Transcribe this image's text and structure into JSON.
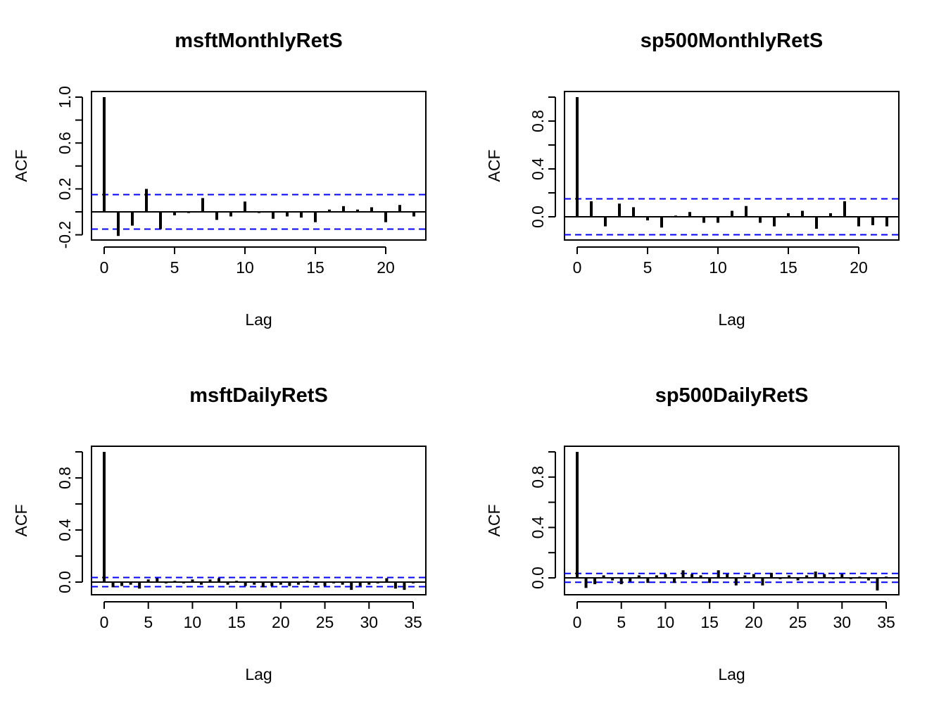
{
  "chart_data": [
    {
      "type": "bar",
      "title": "msftMonthlyRetS",
      "xlabel": "Lag",
      "ylabel": "ACF",
      "xlim": [
        0,
        22
      ],
      "ylim": [
        -0.2,
        1.0
      ],
      "xticks": [
        "0",
        "5",
        "10",
        "15",
        "20"
      ],
      "yticks": [
        "-0.2",
        "0.2",
        "0.6",
        "1.0"
      ],
      "ci": 0.15,
      "ci_color": "#0000ff",
      "grid": false,
      "lags": [
        0,
        1,
        2,
        3,
        4,
        5,
        6,
        7,
        8,
        9,
        10,
        11,
        12,
        13,
        14,
        15,
        16,
        17,
        18,
        19,
        20,
        21,
        22
      ],
      "values": [
        1.0,
        -0.21,
        -0.12,
        0.2,
        -0.15,
        -0.03,
        -0.01,
        0.12,
        -0.07,
        -0.04,
        0.09,
        -0.01,
        -0.06,
        -0.04,
        -0.05,
        -0.09,
        0.02,
        0.05,
        0.02,
        0.04,
        -0.09,
        0.06,
        -0.04
      ]
    },
    {
      "type": "bar",
      "title": "sp500MonthlyRetS",
      "xlabel": "Lag",
      "ylabel": "ACF",
      "xlim": [
        0,
        22
      ],
      "ylim": [
        -0.15,
        1.0
      ],
      "xticks": [
        "0",
        "5",
        "10",
        "15",
        "20"
      ],
      "yticks": [
        "0.0",
        "0.4",
        "0.8"
      ],
      "ci": 0.15,
      "ci_color": "#0000ff",
      "grid": false,
      "lags": [
        0,
        1,
        2,
        3,
        4,
        5,
        6,
        7,
        8,
        9,
        10,
        11,
        12,
        13,
        14,
        15,
        16,
        17,
        18,
        19,
        20,
        21,
        22
      ],
      "values": [
        1.0,
        0.13,
        -0.08,
        0.11,
        0.08,
        -0.03,
        -0.09,
        0.01,
        0.04,
        -0.05,
        -0.05,
        0.05,
        0.09,
        -0.05,
        -0.08,
        0.03,
        0.05,
        -0.1,
        0.03,
        0.13,
        -0.08,
        -0.07,
        -0.08
      ]
    },
    {
      "type": "bar",
      "title": "msftDailyRetS",
      "xlabel": "Lag",
      "ylabel": "ACF",
      "xlim": [
        0,
        35
      ],
      "ylim": [
        -0.1,
        1.0
      ],
      "xticks": [
        "0",
        "5",
        "10",
        "15",
        "20",
        "25",
        "30",
        "35"
      ],
      "yticks": [
        "0.0",
        "0.4",
        "0.8"
      ],
      "ci": 0.035,
      "ci_color": "#0000ff",
      "grid": false,
      "lags": [
        0,
        1,
        2,
        3,
        4,
        5,
        6,
        7,
        8,
        9,
        10,
        11,
        12,
        13,
        14,
        15,
        16,
        17,
        18,
        19,
        20,
        21,
        22,
        23,
        24,
        25,
        26,
        27,
        28,
        29,
        30,
        31,
        32,
        33,
        34,
        35
      ],
      "values": [
        1.0,
        -0.04,
        -0.03,
        -0.02,
        -0.05,
        0.02,
        0.03,
        -0.01,
        0.01,
        -0.01,
        0.02,
        -0.02,
        0.02,
        0.03,
        -0.02,
        0.01,
        -0.03,
        -0.02,
        -0.04,
        -0.03,
        -0.02,
        -0.03,
        -0.02,
        0.01,
        -0.02,
        -0.03,
        -0.01,
        -0.02,
        -0.06,
        -0.03,
        -0.02,
        -0.01,
        0.03,
        -0.05,
        -0.06,
        -0.01
      ]
    },
    {
      "type": "bar",
      "title": "sp500DailyRetS",
      "xlabel": "Lag",
      "ylabel": "ACF",
      "xlim": [
        0,
        35
      ],
      "ylim": [
        -0.1,
        1.0
      ],
      "xticks": [
        "0",
        "5",
        "10",
        "15",
        "20",
        "25",
        "30",
        "35"
      ],
      "yticks": [
        "0.0",
        "0.4",
        "0.8"
      ],
      "ci": 0.035,
      "ci_color": "#0000ff",
      "grid": false,
      "lags": [
        0,
        1,
        2,
        3,
        4,
        5,
        6,
        7,
        8,
        9,
        10,
        11,
        12,
        13,
        14,
        15,
        16,
        17,
        18,
        19,
        20,
        21,
        22,
        23,
        24,
        25,
        26,
        27,
        28,
        29,
        30,
        31,
        32,
        33,
        34,
        35
      ],
      "values": [
        1.0,
        -0.08,
        -0.05,
        0.02,
        -0.02,
        -0.05,
        -0.03,
        0.02,
        -0.04,
        0.02,
        0.03,
        -0.04,
        0.06,
        0.03,
        0.02,
        -0.04,
        0.06,
        0.03,
        -0.06,
        0.02,
        0.03,
        -0.06,
        0.04,
        -0.01,
        0.02,
        -0.02,
        0.02,
        0.05,
        0.03,
        -0.01,
        0.03,
        -0.01,
        0.01,
        -0.02,
        -0.1,
        0.01
      ]
    }
  ]
}
